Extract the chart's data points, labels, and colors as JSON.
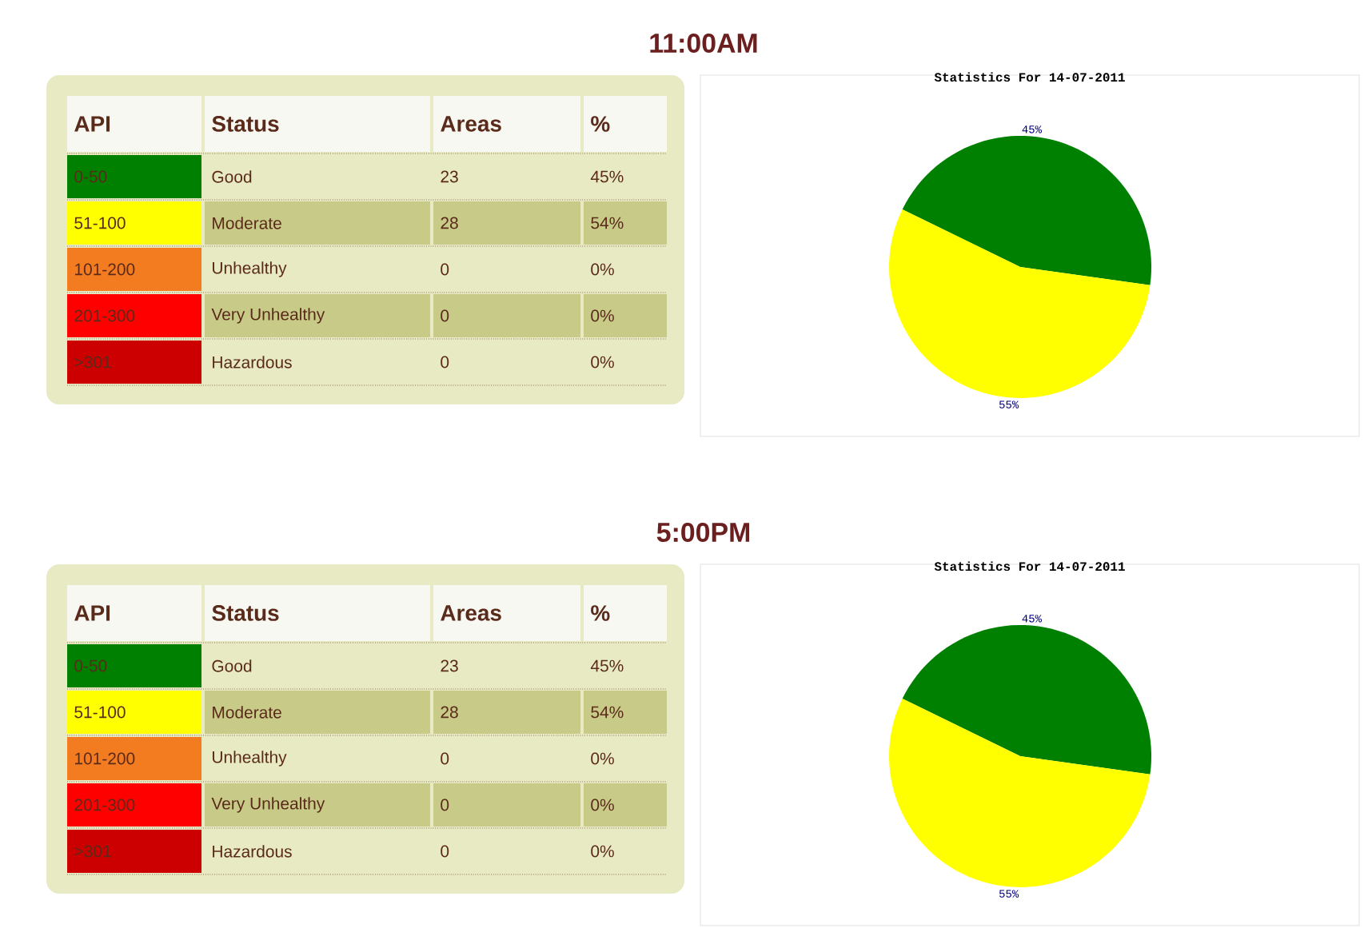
{
  "chart_data": [
    {
      "type": "other",
      "title": "11:00AM",
      "colors": [
        "#008000",
        "#ffff00",
        "#f47c20",
        "#ff0000",
        "#cc0000"
      ],
      "annotations": [
        "API",
        "Status",
        "Areas",
        "%",
        "0-50",
        "Good",
        "23",
        "45%",
        "51-100",
        "Moderate",
        "28",
        "54%",
        "101-200",
        "Unhealthy",
        "0",
        "0%",
        "201-300",
        "Very Unhealthy",
        "0",
        "0%",
        ">301",
        "Hazardous",
        "0",
        "0%"
      ]
    },
    {
      "type": "pie",
      "title": "Statistics For 14-07-2011",
      "categories": [
        null,
        null
      ],
      "values": [
        45,
        55
      ],
      "colors": [
        "#008000",
        "#ffff00"
      ],
      "value_labels": [
        "45%",
        "55%"
      ]
    },
    {
      "type": "other",
      "title": "5:00PM",
      "colors": [
        "#008000",
        "#ffff00",
        "#f47c20",
        "#ff0000",
        "#cc0000"
      ],
      "annotations": [
        "API",
        "Status",
        "Areas",
        "%",
        "0-50",
        "Good",
        "23",
        "45%",
        "51-100",
        "Moderate",
        "28",
        "54%",
        "101-200",
        "Unhealthy",
        "0",
        "0%",
        "201-300",
        "Very Unhealthy",
        "0",
        "0%",
        ">301",
        "Hazardous",
        "0",
        "0%"
      ]
    },
    {
      "type": "pie",
      "title": "Statistics For 14-07-2011",
      "categories": [
        null,
        null
      ],
      "values": [
        45,
        55
      ],
      "colors": [
        "#008000",
        "#ffff00"
      ],
      "value_labels": [
        "45%",
        "55%"
      ]
    }
  ]
}
